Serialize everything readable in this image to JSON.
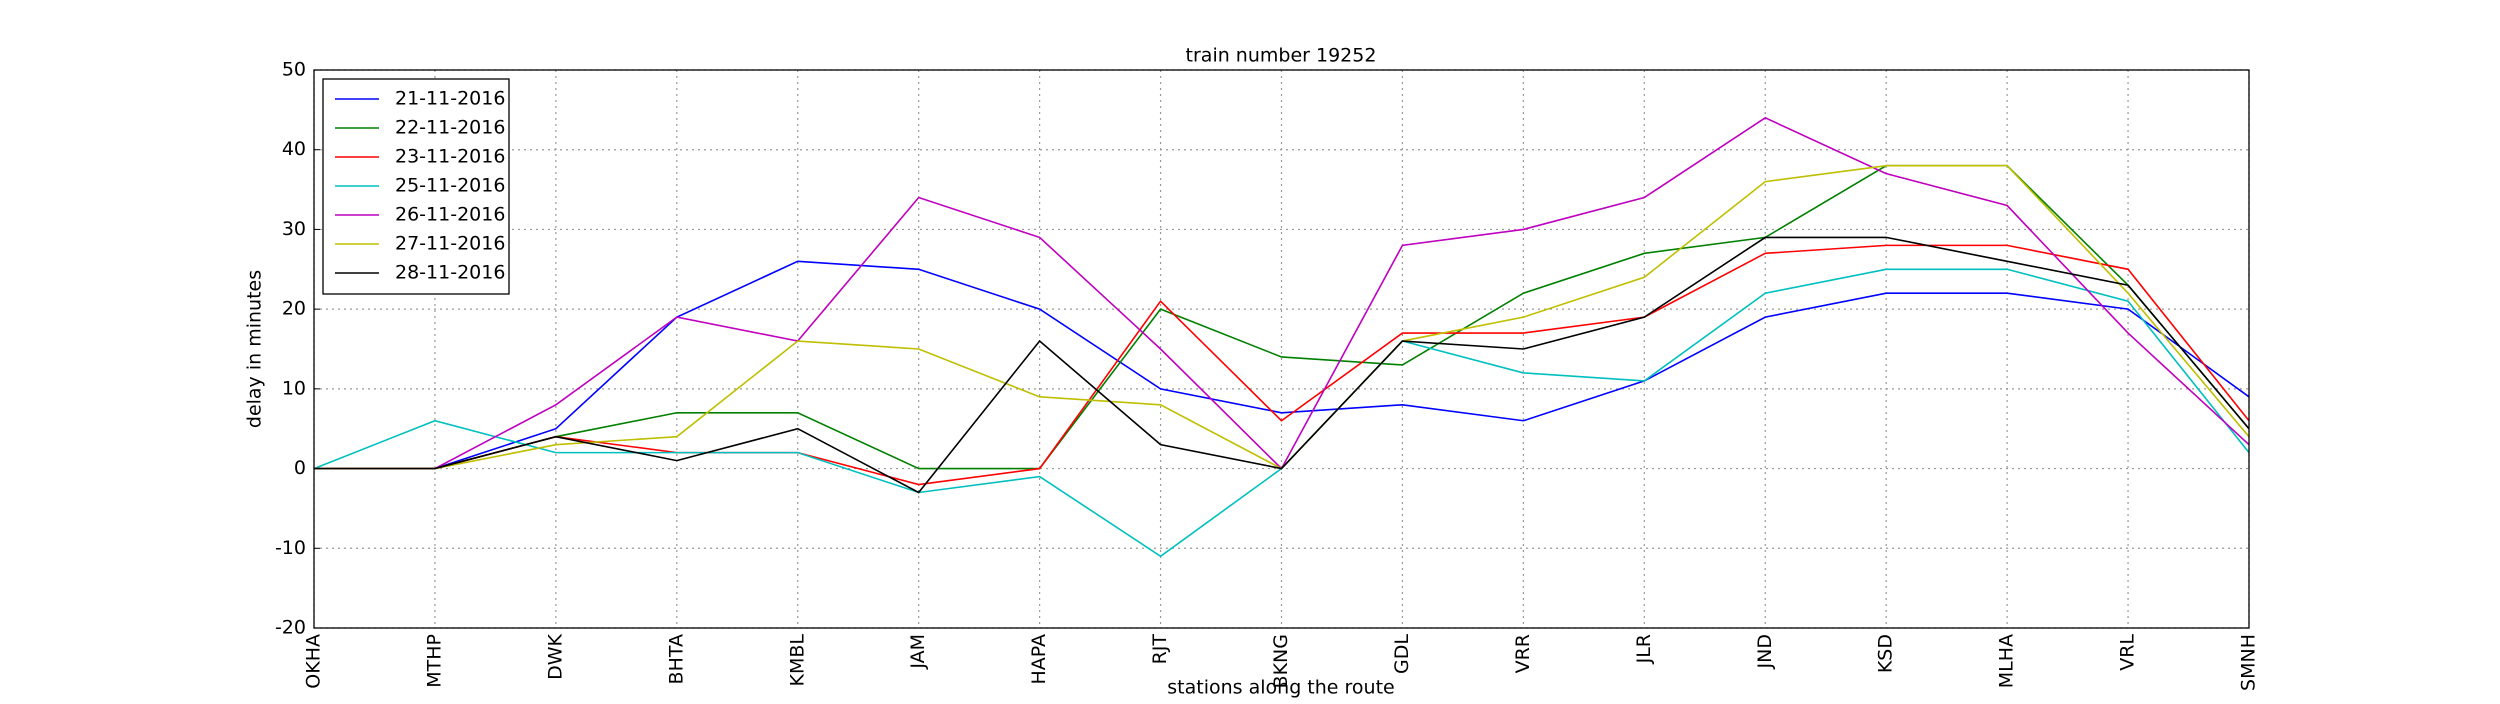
{
  "chart_data": {
    "type": "line",
    "title": "train number 19252",
    "x_label": "stations along the route",
    "y_label": "delay in minutes",
    "categories": [
      "OKHA",
      "MTHP",
      "DWK",
      "BHTA",
      "KMBL",
      "JAM",
      "HAPA",
      "RJT",
      "BKNG",
      "GDL",
      "VRR",
      "JLR",
      "JND",
      "KSD",
      "MLHA",
      "VRL",
      "SMNH"
    ],
    "series": [
      {
        "name": "21-11-2016",
        "color": "#0000ff",
        "values": [
          0,
          0,
          5,
          19,
          26,
          25,
          20,
          10,
          7,
          8,
          6,
          11,
          19,
          22,
          22,
          20,
          9
        ]
      },
      {
        "name": "22-11-2016",
        "color": "#008000",
        "values": [
          0,
          0,
          4,
          7,
          7,
          0,
          0,
          20,
          14,
          13,
          22,
          27,
          29,
          38,
          38,
          23,
          5
        ]
      },
      {
        "name": "23-11-2016",
        "color": "#ff0000",
        "values": [
          0,
          0,
          4,
          2,
          2,
          -2,
          0,
          21,
          6,
          17,
          17,
          19,
          27,
          28,
          28,
          25,
          6
        ]
      },
      {
        "name": "25-11-2016",
        "color": "#00bfbf",
        "values": [
          0,
          6,
          2,
          2,
          2,
          -3,
          -1,
          -11,
          0,
          16,
          12,
          11,
          22,
          25,
          25,
          21,
          2
        ]
      },
      {
        "name": "26-11-2016",
        "color": "#bf00bf",
        "values": [
          0,
          0,
          8,
          19,
          16,
          34,
          29,
          15,
          0,
          28,
          30,
          34,
          44,
          37,
          33,
          17,
          3
        ]
      },
      {
        "name": "27-11-2016",
        "color": "#bfbf00",
        "values": [
          0,
          0,
          3,
          4,
          16,
          15,
          9,
          8,
          0,
          16,
          19,
          24,
          36,
          38,
          38,
          22,
          4
        ]
      },
      {
        "name": "28-11-2016",
        "color": "#000000",
        "values": [
          0,
          0,
          4,
          1,
          5,
          -3,
          16,
          3,
          0,
          16,
          15,
          19,
          29,
          29,
          26,
          23,
          5
        ]
      }
    ],
    "ylim": [
      -20,
      50
    ],
    "yticks": [
      -20,
      -10,
      0,
      10,
      20,
      30,
      40,
      50
    ],
    "grid": true,
    "legend": "upper left"
  }
}
